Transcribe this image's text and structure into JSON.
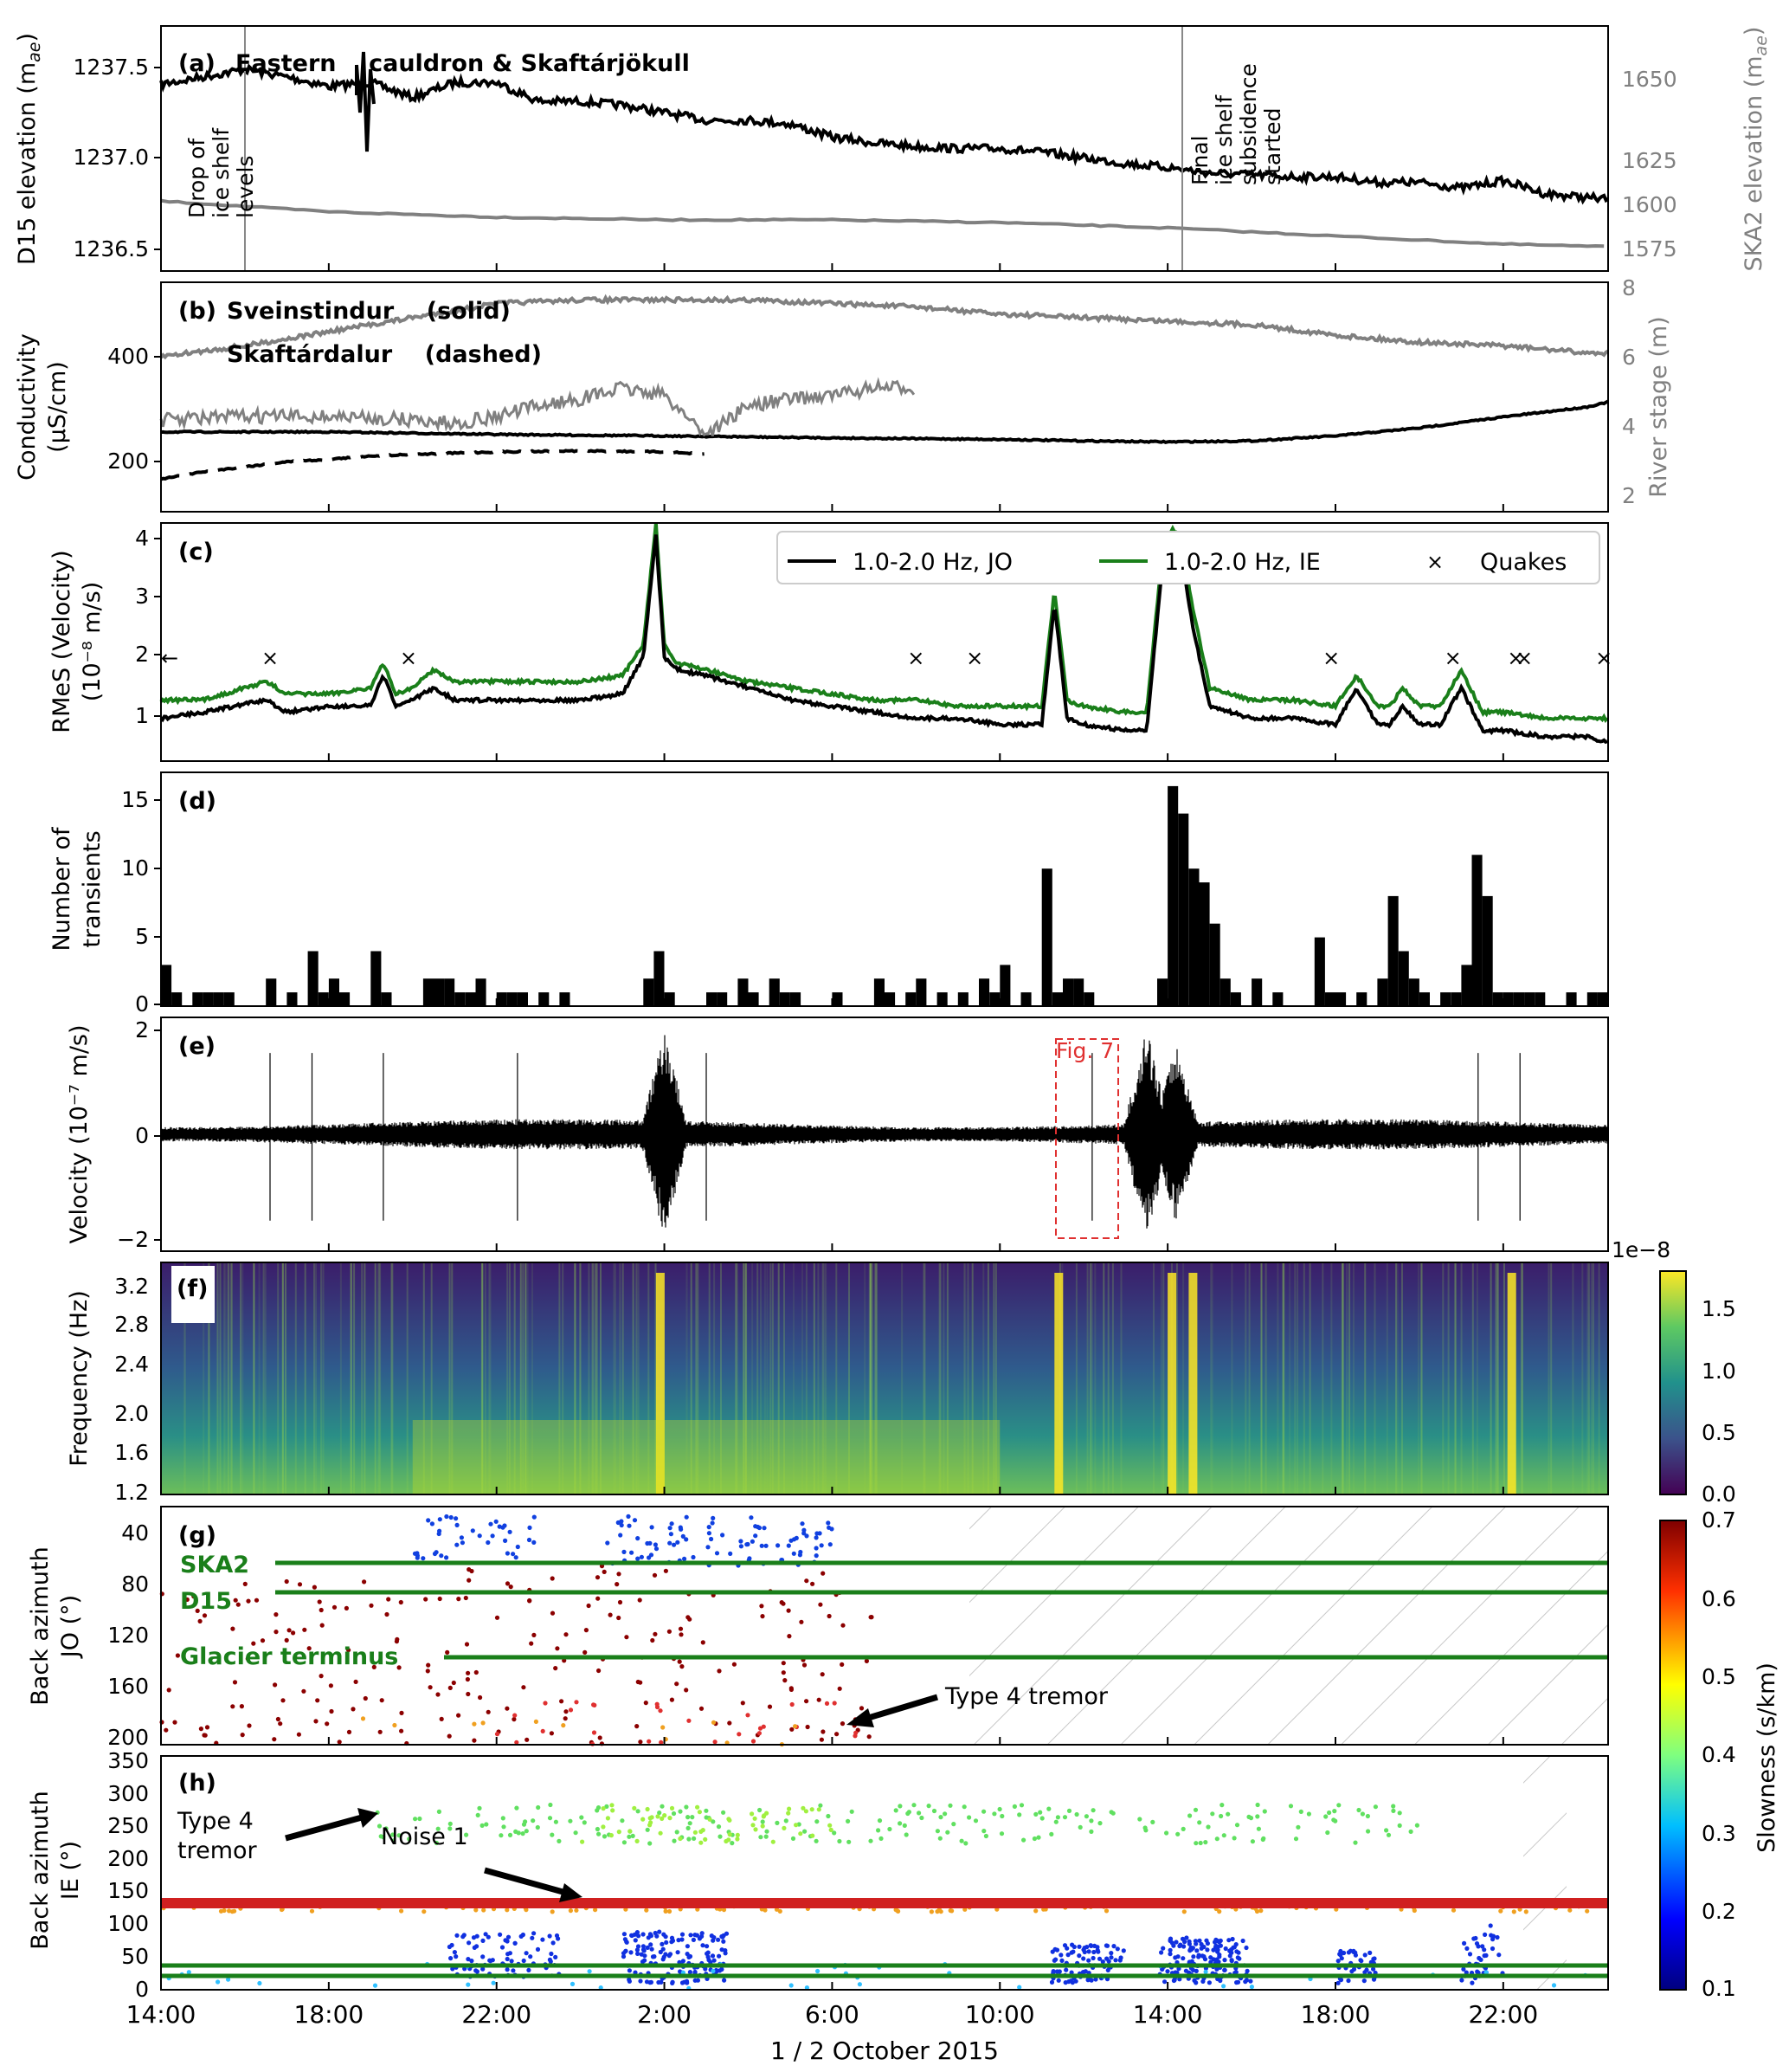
{
  "x_axis": {
    "label": "1 / 2 October 2015",
    "ticks": [
      "14:00",
      "18:00",
      "22:00",
      "2:00",
      "6:00",
      "10:00",
      "14:00",
      "18:00",
      "22:00"
    ],
    "tick_hours": [
      14,
      18,
      22,
      26,
      30,
      34,
      38,
      42,
      46
    ],
    "xlim_hours": [
      14,
      48.5
    ]
  },
  "colors": {
    "black": "#000000",
    "gray": "#808080",
    "green": "#1a7f1a",
    "red": "#e03030"
  },
  "panels": {
    "a": {
      "label": "(a)",
      "title": "Eastern    cauldron & Skaftárjökull",
      "ylabel": "D15 elevation (m",
      "ylabel_sub": "ae",
      "ylabel_end": ")",
      "yticks": [
        "1236.5",
        "1237.0",
        "1237.5"
      ],
      "y2label": "SKA2 elevation (m",
      "y2label_sub": "ae",
      "y2label_end": ")",
      "y2ticks": [
        "1575",
        "1600",
        "1625",
        "1650"
      ],
      "annotation1": [
        "Drop of",
        "ice shelf",
        "levels"
      ],
      "annotation2": [
        "Final",
        "ice shelf",
        "subsidence",
        "started"
      ]
    },
    "b": {
      "label": "(b)",
      "legend1": "Sveinstindur    (solid)",
      "legend2": "Skaftárdalur    (dashed)",
      "ylabel1": "Conductivity",
      "ylabel2": "(μS/cm)",
      "yticks": [
        "200",
        "400"
      ],
      "y2label": "River stage (m)",
      "y2ticks": [
        "2",
        "4",
        "6",
        "8"
      ]
    },
    "c": {
      "label": "(c)",
      "ylabel1": "RMeS (Velocity)",
      "ylabel2": "(10⁻⁸ m/s)",
      "yticks": [
        "1",
        "2",
        "3",
        "4"
      ],
      "legend": [
        "1.0-2.0 Hz, JO",
        "1.0-2.0 Hz, IE",
        "Quakes"
      ]
    },
    "d": {
      "label": "(d)",
      "ylabel1": "Number of",
      "ylabel2": "transients",
      "yticks": [
        "0",
        "5",
        "10",
        "15"
      ]
    },
    "e": {
      "label": "(e)",
      "ylabel": "Velocity (10⁻⁷ m/s)",
      "yticks": [
        "−2",
        "0",
        "2"
      ],
      "box_label": "Fig. 7"
    },
    "f": {
      "label": "(f)",
      "ylabel": "Frequency (Hz)",
      "yticks": [
        "1.2",
        "1.6",
        "2.0",
        "2.4",
        "2.8",
        "3.2"
      ],
      "cbar_ticks": [
        "0.0",
        "0.5",
        "1.0",
        "1.5"
      ],
      "cbar_exp": "1e−8"
    },
    "g": {
      "label": "(g)",
      "ylabel1": "Back azimuth",
      "ylabel2": "JO (°)",
      "yticks": [
        "40",
        "80",
        "120",
        "160",
        "200"
      ],
      "lines": [
        "SKA2",
        "D15",
        "Glacier terminus"
      ],
      "arrow_label": "Type 4 tremor"
    },
    "h": {
      "label": "(h)",
      "ylabel1": "Back azimuth",
      "ylabel2": "IE (°)",
      "yticks": [
        "0",
        "50",
        "100",
        "150",
        "200",
        "250",
        "300",
        "350"
      ],
      "arrow1": [
        "Type 4",
        "tremor"
      ],
      "arrow2": "Noise 1"
    },
    "cbar2": {
      "label": "Slowness (s/km)",
      "ticks": [
        "0.1",
        "0.2",
        "0.3",
        "0.4",
        "0.5",
        "0.6",
        "0.7"
      ]
    }
  },
  "chart_data": [
    {
      "panel": "a",
      "type": "line",
      "series": [
        {
          "axis": "left",
          "color": "#000000",
          "x": [
            14,
            15,
            16,
            17,
            18,
            19,
            20,
            21,
            22,
            23,
            24,
            25,
            26,
            27,
            28,
            29,
            30,
            31,
            32,
            33,
            34,
            35,
            36,
            37,
            38,
            39,
            40,
            41,
            42,
            43,
            44,
            45,
            46,
            47,
            48,
            48.5
          ],
          "y": [
            1237.34,
            1237.38,
            1237.42,
            1237.38,
            1237.33,
            1237.35,
            1237.27,
            1237.35,
            1237.35,
            1237.25,
            1237.25,
            1237.23,
            1237.19,
            1237.15,
            1237.15,
            1237.13,
            1237.06,
            1237.03,
            1237.01,
            1237.0,
            1237.0,
            1236.98,
            1236.95,
            1236.92,
            1236.9,
            1236.87,
            1236.86,
            1236.85,
            1236.85,
            1236.82,
            1236.82,
            1236.79,
            1236.83,
            1236.76,
            1236.74,
            1236.73
          ]
        },
        {
          "axis": "right",
          "color": "#808080",
          "x": [
            14,
            18,
            22,
            26,
            30,
            34,
            38,
            42,
            46,
            48.5
          ],
          "y": [
            1597,
            1593,
            1591,
            1590,
            1590,
            1589,
            1587,
            1584,
            1581,
            1580
          ]
        }
      ],
      "ylim": [
        1236.35,
        1237.65
      ],
      "y2lim": [
        1571,
        1662
      ]
    },
    {
      "panel": "b",
      "type": "line",
      "series": [
        {
          "name": "Sveinstindur",
          "style": "solid",
          "axis": "left",
          "color": "#000000",
          "x": [
            14,
            18,
            22,
            26,
            30,
            34,
            36,
            38,
            40,
            42,
            44,
            46,
            48,
            48.5
          ],
          "y": [
            270,
            270,
            265,
            262,
            258,
            255,
            252,
            250,
            252,
            262,
            278,
            300,
            320,
            330
          ]
        },
        {
          "name": "Skaftárdalur",
          "style": "dashed",
          "axis": "left",
          "color": "#000000",
          "x": [
            14,
            15,
            16,
            17,
            18,
            19,
            20,
            22,
            24,
            26,
            27
          ],
          "y": [
            175,
            190,
            200,
            210,
            215,
            222,
            225,
            230,
            232,
            230,
            225
          ]
        },
        {
          "name": "Sveinstindur",
          "style": "solid",
          "axis": "right",
          "color": "#808080",
          "x": [
            14,
            16,
            18,
            20,
            22,
            24,
            26,
            28,
            30,
            32,
            34,
            36,
            38,
            40,
            42,
            44,
            46,
            48,
            48.5
          ],
          "y": [
            5.9,
            6.2,
            6.6,
            7.0,
            7.4,
            7.5,
            7.5,
            7.5,
            7.4,
            7.3,
            7.1,
            7.0,
            6.9,
            6.8,
            6.5,
            6.3,
            6.2,
            6.0,
            6.0
          ]
        },
        {
          "name": "Skaftárdalur",
          "style": "dashed",
          "axis": "right",
          "color": "#808080",
          "x": [
            14,
            16,
            18,
            20,
            21,
            22,
            23,
            24,
            25,
            26,
            27,
            28,
            29,
            30,
            31,
            32
          ],
          "y": [
            4.1,
            4.2,
            4.2,
            4.1,
            4.0,
            4.2,
            4.5,
            4.7,
            5.0,
            4.8,
            3.7,
            4.5,
            4.7,
            4.8,
            5.0,
            5.0
          ]
        }
      ],
      "ylim": [
        110,
        570
      ],
      "y2lim": [
        1.5,
        8
      ]
    },
    {
      "panel": "c",
      "type": "line",
      "series": [
        {
          "name": "1.0-2.0 Hz, JO",
          "color": "#000000",
          "x": [
            14,
            15,
            16.5,
            17,
            18,
            19,
            19.3,
            19.6,
            20,
            20.5,
            21,
            22,
            23,
            24,
            25,
            25.5,
            25.8,
            26,
            26.3,
            27,
            28,
            29,
            30,
            31,
            32,
            33,
            34,
            35,
            35.3,
            35.6,
            36,
            37,
            37.5,
            37.9,
            38.1,
            38.3,
            38.6,
            39,
            39.5,
            40,
            41,
            42,
            42.5,
            43,
            43.3,
            43.6,
            44,
            44.5,
            45,
            45.5,
            46,
            47,
            48,
            48.5
          ],
          "y": [
            1.0,
            1.1,
            1.3,
            1.1,
            1.2,
            1.2,
            1.7,
            1.2,
            1.3,
            1.5,
            1.3,
            1.3,
            1.3,
            1.3,
            1.4,
            2.0,
            4.0,
            2.0,
            1.8,
            1.7,
            1.5,
            1.3,
            1.2,
            1.1,
            1.0,
            1.0,
            0.9,
            0.9,
            2.9,
            1.0,
            0.9,
            0.8,
            0.8,
            3.7,
            3.9,
            3.8,
            2.5,
            1.2,
            1.1,
            1.0,
            1.0,
            0.9,
            1.5,
            0.9,
            0.9,
            1.2,
            0.9,
            0.9,
            1.5,
            0.8,
            0.8,
            0.7,
            0.7,
            0.6
          ]
        },
        {
          "name": "1.0-2.0 Hz, IE",
          "color": "#1a7f1a",
          "x": [
            14,
            15,
            16.5,
            17,
            18,
            19,
            19.3,
            19.6,
            20,
            20.5,
            21,
            22,
            23,
            24,
            25,
            25.5,
            25.8,
            26,
            26.3,
            27,
            28,
            29,
            30,
            31,
            32,
            33,
            34,
            35,
            35.3,
            35.6,
            36,
            37,
            37.5,
            37.9,
            38.1,
            38.3,
            38.6,
            39,
            39.5,
            40,
            41,
            42,
            42.5,
            43,
            43.3,
            43.6,
            44,
            44.5,
            45,
            45.5,
            46,
            47,
            48,
            48.5
          ],
          "y": [
            1.3,
            1.3,
            1.6,
            1.4,
            1.4,
            1.5,
            1.9,
            1.4,
            1.5,
            1.8,
            1.6,
            1.6,
            1.6,
            1.6,
            1.7,
            2.2,
            4.2,
            2.2,
            1.9,
            1.8,
            1.6,
            1.5,
            1.4,
            1.3,
            1.3,
            1.2,
            1.2,
            1.2,
            3.1,
            1.3,
            1.2,
            1.1,
            1.1,
            3.9,
            4.1,
            4.0,
            2.8,
            1.5,
            1.4,
            1.3,
            1.3,
            1.2,
            1.7,
            1.2,
            1.2,
            1.5,
            1.2,
            1.2,
            1.8,
            1.1,
            1.1,
            1.0,
            1.0,
            1.0
          ]
        },
        {
          "name": "Quakes",
          "marker": "x",
          "x": [
            16.6,
            19.9,
            32.0,
            33.4,
            41.9,
            44.8,
            46.3,
            46.5,
            48.4
          ],
          "y": [
            2,
            2,
            2,
            2,
            2,
            2,
            2,
            2,
            2
          ]
        }
      ],
      "ylim": [
        0.3,
        4.2
      ]
    },
    {
      "panel": "d",
      "type": "bar",
      "x": [
        14,
        14.25,
        14.75,
        15.0,
        15.25,
        15.5,
        16.5,
        17.0,
        17.5,
        17.75,
        18.0,
        18.25,
        19.0,
        19.25,
        20.25,
        20.5,
        20.75,
        21.0,
        21.25,
        21.5,
        22.0,
        22.25,
        22.5,
        23.0,
        23.5,
        25.5,
        25.75,
        26.0,
        27.0,
        27.25,
        27.75,
        28.0,
        28.5,
        28.75,
        29.0,
        30.0,
        31.0,
        31.25,
        31.75,
        32.0,
        32.5,
        33.0,
        33.5,
        33.75,
        34.0,
        34.5,
        35.0,
        35.25,
        35.5,
        35.75,
        36.0,
        37.75,
        38.0,
        38.25,
        38.5,
        38.75,
        39.0,
        39.25,
        39.5,
        40.0,
        40.5,
        41.5,
        41.75,
        42.0,
        42.5,
        43.0,
        43.25,
        43.5,
        43.75,
        44.0,
        44.5,
        44.75,
        45.0,
        45.25,
        45.5,
        45.75,
        46.0,
        46.25,
        46.5,
        46.75,
        47.5,
        48.0,
        48.25
      ],
      "values": [
        3,
        1,
        1,
        1,
        1,
        1,
        2,
        1,
        4,
        1,
        2,
        1,
        4,
        1,
        2,
        2,
        2,
        1,
        1,
        2,
        1,
        1,
        1,
        1,
        1,
        2,
        4,
        1,
        1,
        1,
        2,
        1,
        2,
        1,
        1,
        1,
        2,
        1,
        1,
        2,
        1,
        1,
        2,
        1,
        3,
        1,
        10,
        1,
        2,
        2,
        1,
        2,
        16,
        14,
        10,
        9,
        6,
        2,
        1,
        2,
        1,
        5,
        1,
        1,
        1,
        2,
        8,
        4,
        2,
        1,
        1,
        1,
        3,
        11,
        8,
        1,
        1,
        1,
        1,
        1,
        1,
        1,
        1
      ],
      "bin_hours": 0.25,
      "ylim": [
        0,
        17
      ]
    },
    {
      "panel": "e",
      "type": "line",
      "description_x": [
        26.0,
        37.5,
        38.2
      ],
      "burst_amplitude": [
        2.1,
        2.1,
        1.8
      ],
      "ylim": [
        -2.3,
        2.3
      ]
    },
    {
      "panel": "f",
      "type": "heatmap",
      "ylim": [
        1.2,
        3.4
      ],
      "clim": [
        0.0,
        1.8
      ],
      "bright_x": [
        25.8,
        35.3,
        38.0,
        38.5,
        46.1
      ]
    },
    {
      "panel": "g",
      "type": "scatter",
      "lines": {
        "SKA2": 63,
        "D15": 86,
        "Glacier terminus": 138
      },
      "ylim": [
        215,
        22
      ],
      "hatched_x": [
        [
          33.0,
          48.5
        ]
      ]
    },
    {
      "panel": "h",
      "type": "scatter",
      "bands": {
        "noise_1": 128,
        "type4_tremor": 260
      },
      "ylim": [
        0,
        360
      ],
      "hatched_x": [
        [
          46.7,
          47.8
        ]
      ]
    }
  ]
}
